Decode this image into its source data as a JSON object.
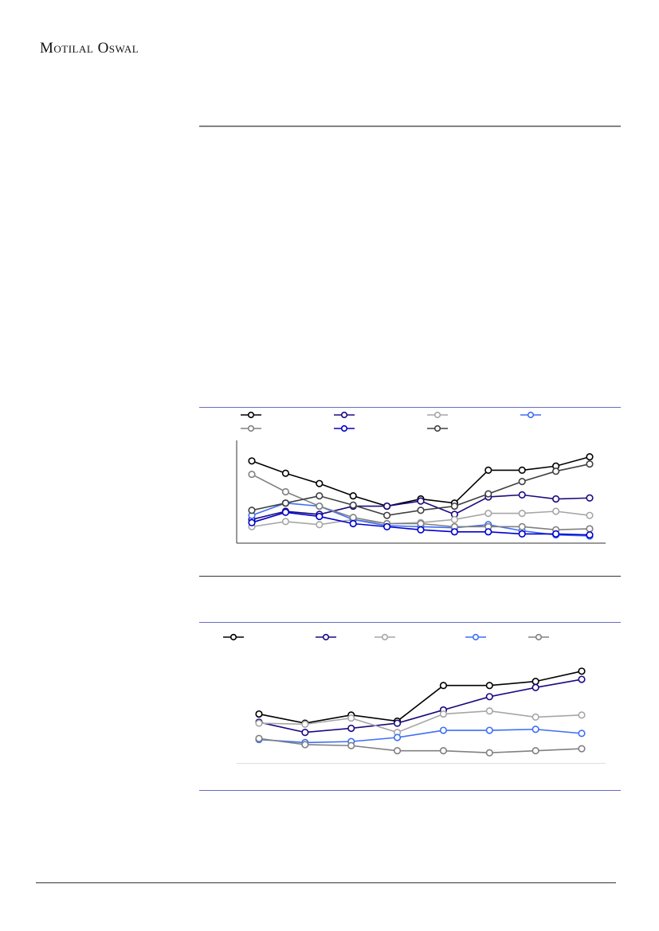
{
  "header": {
    "brand": "Motilal Oswal"
  },
  "chart_data": [
    {
      "type": "line",
      "categories": [
        null,
        null,
        null,
        null,
        null,
        null,
        null,
        null,
        null,
        null,
        null
      ],
      "ylim": [
        0,
        100
      ],
      "series": [
        {
          "color": "#000000",
          "values": [
            80,
            68,
            58,
            46,
            36,
            43,
            39,
            71,
            71,
            75,
            84
          ]
        },
        {
          "color": "#1a0a80",
          "values": [
            23,
            31,
            28,
            36,
            36,
            41,
            28,
            45,
            47,
            43,
            44
          ]
        },
        {
          "color": "#a6a6a6",
          "values": [
            16,
            21,
            18,
            23,
            19,
            20,
            23,
            29,
            29,
            31,
            27
          ]
        },
        {
          "color": "#3d6ef5",
          "values": [
            27,
            39,
            36,
            23,
            17,
            16,
            15,
            18,
            12,
            8,
            7
          ]
        },
        {
          "color": "#808080",
          "values": [
            67,
            50,
            36,
            25,
            19,
            19,
            16,
            16,
            16,
            13,
            14
          ]
        },
        {
          "color": "#0000cc",
          "values": [
            20,
            30,
            26,
            19,
            16,
            13,
            11,
            11,
            9,
            9,
            8
          ]
        },
        {
          "color": "#404040",
          "values": [
            32,
            39,
            46,
            37,
            27,
            32,
            36,
            48,
            60,
            70,
            77
          ]
        }
      ]
    },
    {
      "type": "line",
      "categories": [
        null,
        null,
        null,
        null,
        null,
        null,
        null,
        null
      ],
      "ylim": [
        0,
        100
      ],
      "series": [
        {
          "color": "#000000",
          "values": [
            48,
            39,
            47,
            41,
            76,
            76,
            80,
            90
          ]
        },
        {
          "color": "#1a0a80",
          "values": [
            40,
            30,
            34,
            39,
            52,
            65,
            74,
            82
          ]
        },
        {
          "color": "#a6a6a6",
          "values": [
            39,
            38,
            44,
            30,
            48,
            51,
            45,
            47
          ]
        },
        {
          "color": "#3d6ef5",
          "values": [
            23,
            20,
            21,
            25,
            32,
            32,
            33,
            29
          ]
        },
        {
          "color": "#808080",
          "values": [
            24,
            18,
            17,
            12,
            12,
            10,
            12,
            14
          ]
        }
      ]
    }
  ]
}
